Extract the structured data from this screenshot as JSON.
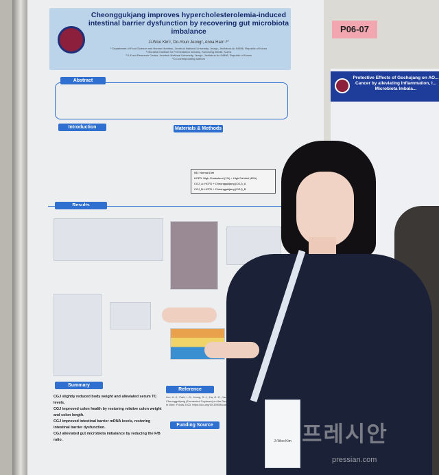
{
  "poster": {
    "title": "Cheonggukjang improves hypercholesterolemia-induced intestinal barrier dysfunction by recovering gut microbiota imbalance",
    "authors": "Ji-Woo Kim¹, Do-Youn Jeong², Anna Han¹·³*",
    "affiliations": [
      "¹ Department of Food Science and Human Nutrition, Jeonbuk National University, Jeonju, Jeollabuk-do 54896, Republic of Korea",
      "² Microbial Institute for Fermentation Industry, Sunchang 56048, Korea",
      "³ K-Food Research Center, Jeonbuk National University, Jeonju, Jeollabuk-do 54896, Republic of Korea",
      "*Co-corresponding authors"
    ],
    "sections": {
      "abstract": "Abstract",
      "introduction": "Introduction",
      "methods": "Materials & Methods",
      "results": "Results",
      "summary": "Summary",
      "reference": "Reference",
      "funding": "Funding Source"
    },
    "summary_points": [
      "CGJ slightly reduced body weight and alleviated serum TC levels.",
      "CGJ improved colon health by restoring relative colon weight and colon length.",
      "CGJ improved intestinal barrier mRNA levels, restoring intestinal barrier dysfunction.",
      "CGJ alleviated gut microbiota imbalance by reducing the F/B ratio."
    ],
    "reference_text": "Lim, H.-J.; Park, I.-S.; Jeong, S.-J.; Ha, G.-S.; Yang, H.-J.; Jeong, D.-Y.; Kim, ... Effects of Cheonggukjang (Fermented Soybean) on the Development of Colitis-Associated Colorectal Cancer in Mice. Foods 2023. https://doi.org/10.3390/foods12020383",
    "group_labels": [
      "ND: Normal Diet",
      "HCFD: High Cholesterol (1%) + High Fat diet (45%)",
      "CGJ_A: HCFD + Cheonggukjang (CGJ)_A",
      "CGJ_B: HCFD + Cheonggukjang (CGJ)_B"
    ]
  },
  "booth_label": "P06-07",
  "right_poster": {
    "title": "Protective Effects of Gochujang on AO... Cancer by alleviating Inflammation, I... Microbiota Imbala..."
  },
  "badge": {
    "name": "Ji-Woo Kim"
  },
  "watermark": {
    "text": "프레시안",
    "url": "pressian.com"
  },
  "colors": {
    "header": "#2f6fd0",
    "title_band": "#bcd4ea",
    "booth_label": "#f2a6b0"
  }
}
